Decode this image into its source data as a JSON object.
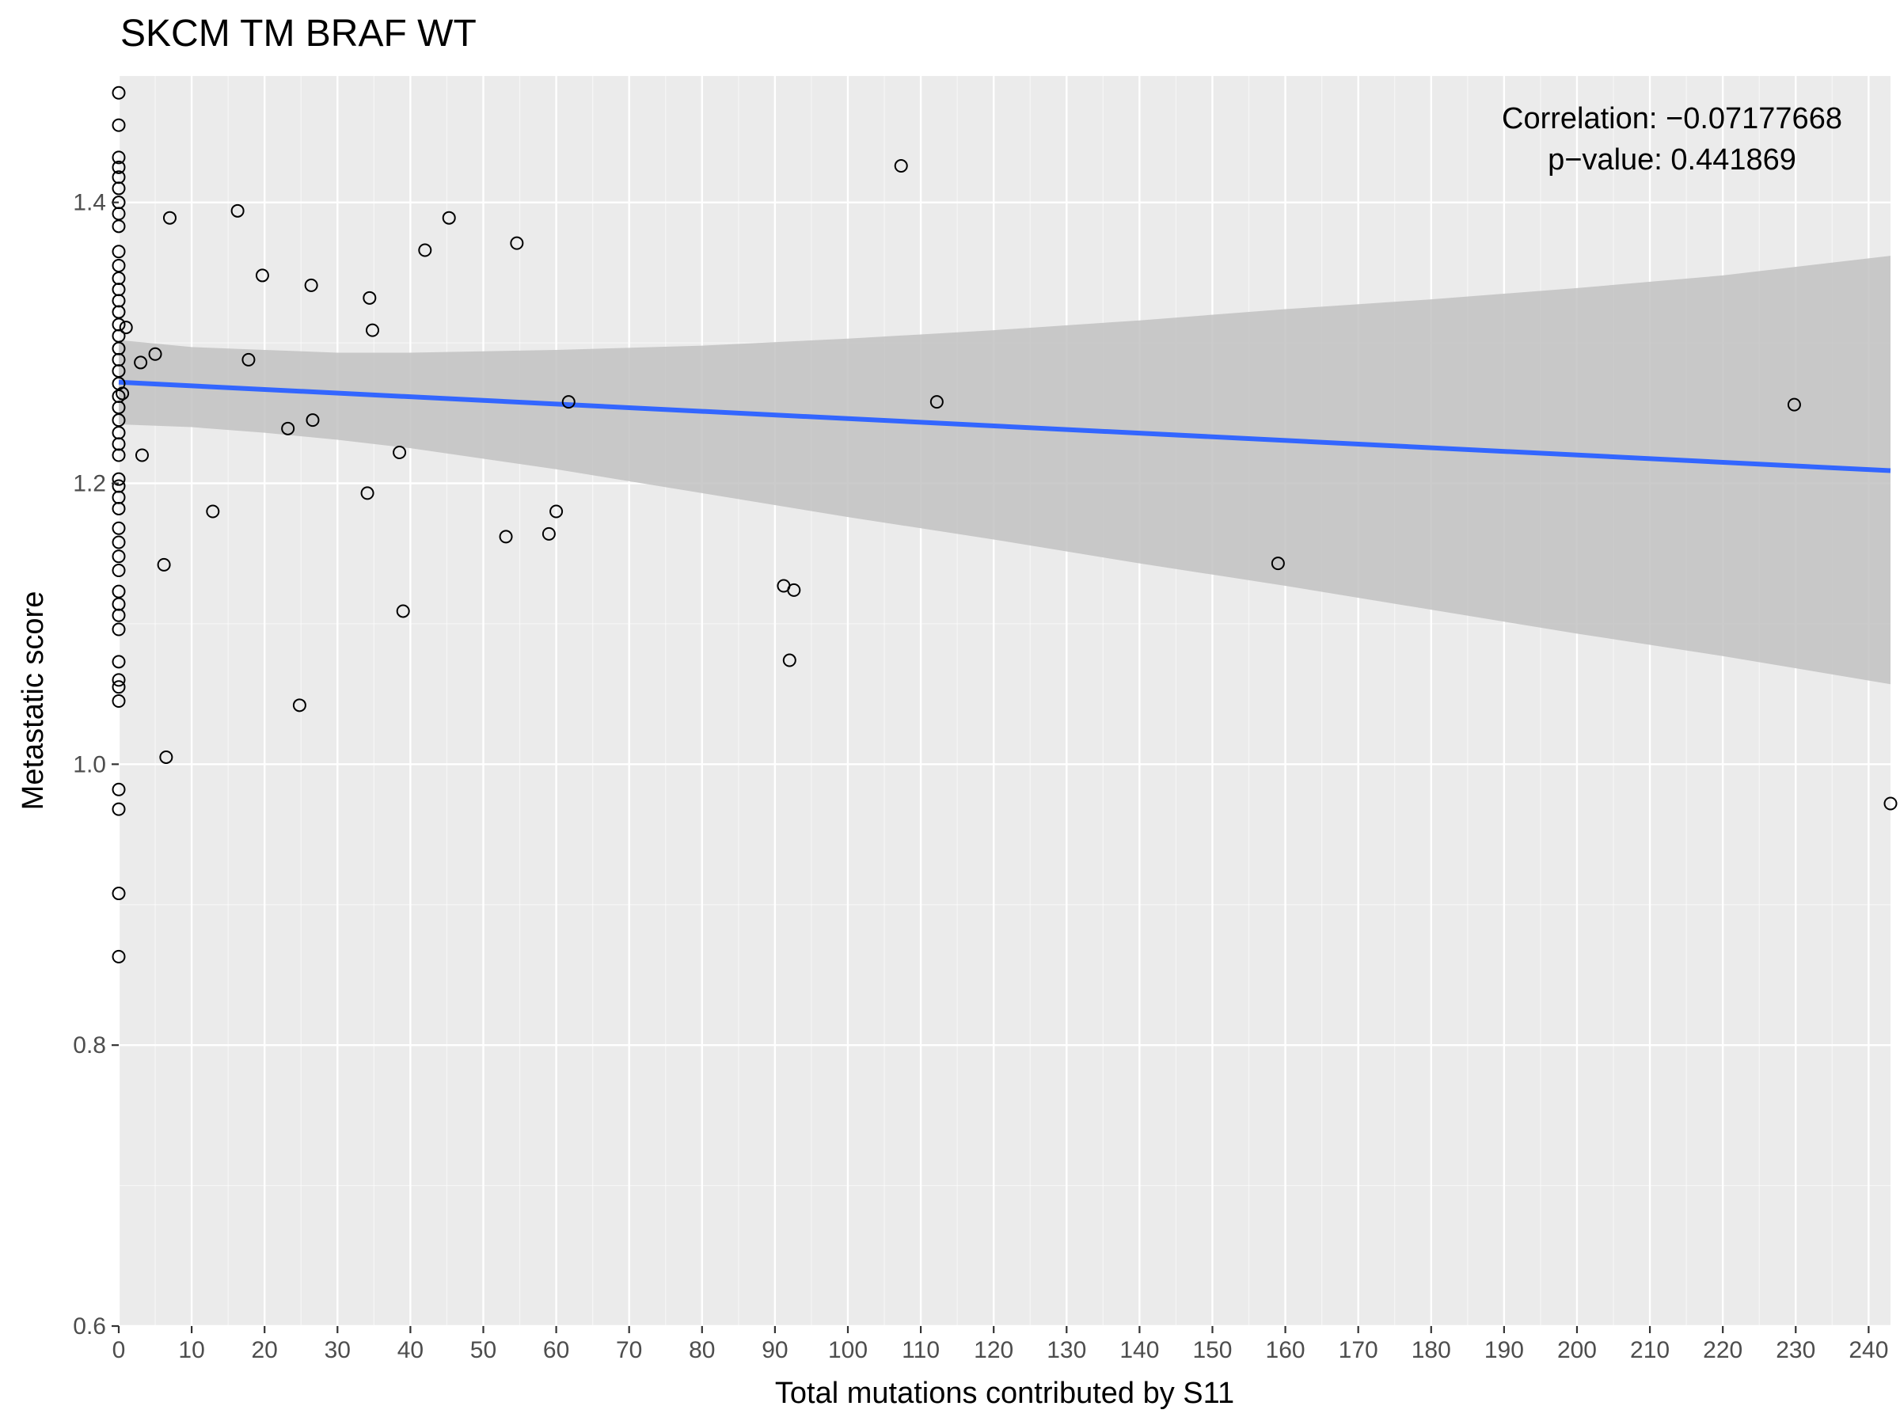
{
  "chart_data": {
    "type": "scatter",
    "title": "SKCM TM BRAF WT",
    "xlabel": "Total mutations contributed by S11",
    "ylabel": "Metastatic score",
    "xlim": [
      0,
      243
    ],
    "ylim": [
      0.6,
      1.49
    ],
    "x_ticks": [
      0,
      10,
      20,
      30,
      40,
      50,
      60,
      70,
      80,
      90,
      100,
      110,
      120,
      130,
      140,
      150,
      160,
      170,
      180,
      190,
      200,
      210,
      220,
      230,
      240
    ],
    "y_ticks": [
      0.6,
      0.8,
      1.0,
      1.2,
      1.4
    ],
    "y_tick_labels": [
      "0.6",
      "0.8",
      "1.0",
      "1.2",
      "1.4"
    ],
    "grid": true,
    "annotations": [
      "Correlation: −0.07177668",
      "p−value: 0.441869"
    ],
    "regression": {
      "x": [
        0,
        243
      ],
      "y": [
        1.272,
        1.209
      ],
      "ci_x": [
        0,
        10,
        20,
        30,
        40,
        60,
        80,
        100,
        120,
        140,
        160,
        180,
        200,
        220,
        243
      ],
      "ci_lower": [
        1.242,
        1.24,
        1.236,
        1.231,
        1.225,
        1.21,
        1.193,
        1.176,
        1.16,
        1.143,
        1.127,
        1.11,
        1.093,
        1.077,
        1.057
      ],
      "ci_upper": [
        1.302,
        1.297,
        1.295,
        1.293,
        1.293,
        1.295,
        1.298,
        1.303,
        1.309,
        1.316,
        1.324,
        1.331,
        1.339,
        1.348,
        1.362
      ]
    },
    "points": [
      {
        "x": 0,
        "y": 1.478
      },
      {
        "x": 0,
        "y": 1.455
      },
      {
        "x": 0,
        "y": 1.432
      },
      {
        "x": 0,
        "y": 1.425
      },
      {
        "x": 0,
        "y": 1.418
      },
      {
        "x": 0,
        "y": 1.41
      },
      {
        "x": 0,
        "y": 1.4
      },
      {
        "x": 0,
        "y": 1.392
      },
      {
        "x": 0,
        "y": 1.383
      },
      {
        "x": 0,
        "y": 1.365
      },
      {
        "x": 0,
        "y": 1.355
      },
      {
        "x": 0,
        "y": 1.346
      },
      {
        "x": 0,
        "y": 1.338
      },
      {
        "x": 0,
        "y": 1.33
      },
      {
        "x": 0,
        "y": 1.322
      },
      {
        "x": 0,
        "y": 1.313
      },
      {
        "x": 0,
        "y": 1.305
      },
      {
        "x": 0,
        "y": 1.296
      },
      {
        "x": 0,
        "y": 1.288
      },
      {
        "x": 0,
        "y": 1.28
      },
      {
        "x": 0,
        "y": 1.271
      },
      {
        "x": 0,
        "y": 1.262
      },
      {
        "x": 0,
        "y": 1.254
      },
      {
        "x": 0,
        "y": 1.245
      },
      {
        "x": 0,
        "y": 1.236
      },
      {
        "x": 0,
        "y": 1.228
      },
      {
        "x": 0,
        "y": 1.22
      },
      {
        "x": 0,
        "y": 1.203
      },
      {
        "x": 0,
        "y": 1.198
      },
      {
        "x": 0,
        "y": 1.19
      },
      {
        "x": 0,
        "y": 1.182
      },
      {
        "x": 0,
        "y": 1.168
      },
      {
        "x": 0,
        "y": 1.158
      },
      {
        "x": 0,
        "y": 1.148
      },
      {
        "x": 0,
        "y": 1.138
      },
      {
        "x": 0,
        "y": 1.123
      },
      {
        "x": 0,
        "y": 1.114
      },
      {
        "x": 0,
        "y": 1.106
      },
      {
        "x": 0,
        "y": 1.096
      },
      {
        "x": 0,
        "y": 1.073
      },
      {
        "x": 0,
        "y": 1.06
      },
      {
        "x": 0,
        "y": 1.055
      },
      {
        "x": 0,
        "y": 1.045
      },
      {
        "x": 0,
        "y": 0.982
      },
      {
        "x": 0,
        "y": 0.968
      },
      {
        "x": 0,
        "y": 0.908
      },
      {
        "x": 0,
        "y": 0.863
      },
      {
        "x": 0.5,
        "y": 1.264
      },
      {
        "x": 1,
        "y": 1.311
      },
      {
        "x": 3,
        "y": 1.286
      },
      {
        "x": 3.2,
        "y": 1.22
      },
      {
        "x": 5,
        "y": 1.292
      },
      {
        "x": 6.2,
        "y": 1.142
      },
      {
        "x": 6.5,
        "y": 1.005
      },
      {
        "x": 7,
        "y": 1.389
      },
      {
        "x": 12.9,
        "y": 1.18
      },
      {
        "x": 16.3,
        "y": 1.394
      },
      {
        "x": 17.8,
        "y": 1.288
      },
      {
        "x": 19.7,
        "y": 1.348
      },
      {
        "x": 23.2,
        "y": 1.239
      },
      {
        "x": 24.8,
        "y": 1.042
      },
      {
        "x": 26.4,
        "y": 1.341
      },
      {
        "x": 26.6,
        "y": 1.245
      },
      {
        "x": 34.1,
        "y": 1.193
      },
      {
        "x": 34.4,
        "y": 1.332
      },
      {
        "x": 34.8,
        "y": 1.309
      },
      {
        "x": 38.5,
        "y": 1.222
      },
      {
        "x": 39.0,
        "y": 1.109
      },
      {
        "x": 42.0,
        "y": 1.366
      },
      {
        "x": 45.3,
        "y": 1.389
      },
      {
        "x": 53.1,
        "y": 1.162
      },
      {
        "x": 54.6,
        "y": 1.371
      },
      {
        "x": 59.0,
        "y": 1.164
      },
      {
        "x": 60.0,
        "y": 1.18
      },
      {
        "x": 61.7,
        "y": 1.258
      },
      {
        "x": 91.2,
        "y": 1.127
      },
      {
        "x": 92.0,
        "y": 1.074
      },
      {
        "x": 92.6,
        "y": 1.124
      },
      {
        "x": 107.3,
        "y": 1.426
      },
      {
        "x": 112.2,
        "y": 1.258
      },
      {
        "x": 159.0,
        "y": 1.143
      },
      {
        "x": 229.8,
        "y": 1.256
      },
      {
        "x": 243,
        "y": 0.972
      }
    ],
    "colors": {
      "panel": "#ebebeb",
      "grid_major": "#ffffff",
      "ribbon": "#c2c2c2",
      "line": "#3366ff",
      "point_stroke": "#000000",
      "tick": "#333333"
    }
  }
}
